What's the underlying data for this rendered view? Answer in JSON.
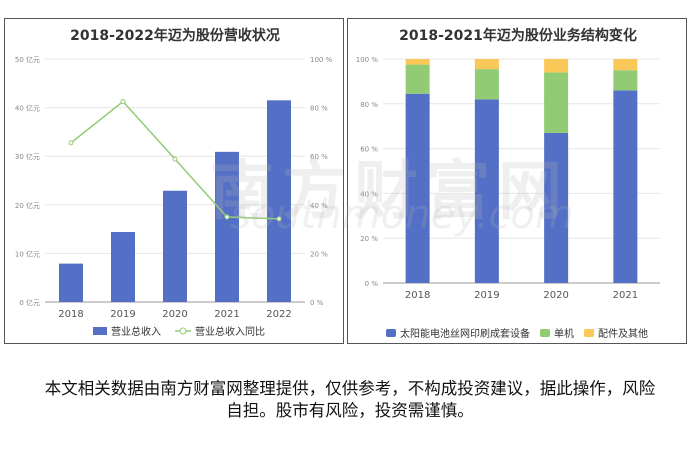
{
  "charts": [
    {
      "type": "bar",
      "title": "2018-2022年迈为股份营收状况",
      "categories": [
        "2018",
        "2019",
        "2020",
        "2021",
        "2022"
      ],
      "series": [
        {
          "name": "营业总收入",
          "values": [
            7.9,
            14.4,
            22.9,
            30.9,
            41.5
          ],
          "color": "#5470c6",
          "axis": "left"
        },
        {
          "name": "营业总收入同比",
          "type": "line",
          "values": [
            65.5,
            82.5,
            58.8,
            35.0,
            34.2
          ],
          "color": "#91cc75",
          "axis": "right"
        }
      ],
      "left_axis": {
        "ticks": [
          "0 亿元",
          "10 亿元",
          "20 亿元",
          "30 亿元",
          "40 亿元",
          "50 亿元"
        ],
        "min": 0,
        "max": 50
      },
      "right_axis": {
        "ticks": [
          "0 %",
          "20 %",
          "40 %",
          "60 %",
          "80 %",
          "100 %"
        ],
        "min": 0,
        "max": 100
      },
      "legend": "bottom"
    },
    {
      "type": "bar",
      "stacked": true,
      "title": "2018-2021年迈为股份业务结构变化",
      "categories": [
        "2018",
        "2019",
        "2020",
        "2021"
      ],
      "series": [
        {
          "name": "太阳能电池丝网印刷成套设备",
          "values": [
            84.5,
            82.0,
            67.0,
            86.0
          ],
          "color": "#5470c6"
        },
        {
          "name": "单机",
          "values": [
            13.0,
            13.5,
            27.0,
            9.0
          ],
          "color": "#91cc75"
        },
        {
          "name": "配件及其他",
          "values": [
            2.5,
            4.5,
            6.0,
            5.0
          ],
          "color": "#fac858"
        }
      ],
      "left_axis": {
        "ticks": [
          "0 %",
          "20 %",
          "40 %",
          "60 %",
          "80 %",
          "100 %"
        ],
        "min": 0,
        "max": 100
      },
      "legend": "bottom"
    }
  ],
  "watermark": {
    "cn": "南方财富网",
    "en": "southmoney.com"
  },
  "disclaimer": "本文相关数据由南方财富网整理提供，仅供参考，不构成投资建议，据此操作，风险自担。股市有风险，投资需谨慎。"
}
